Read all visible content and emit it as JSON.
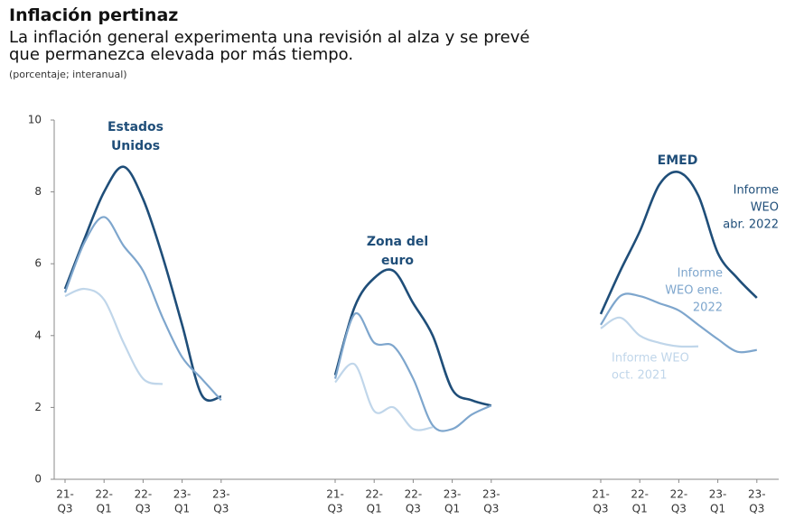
{
  "chart_data": {
    "type": "line",
    "title": "Inflación pertinaz",
    "subtitle": [
      "La inflación general experimenta una revisión al alza y se prevé",
      "que permanezca elevada por más tiempo."
    ],
    "note": "(porcentaje; interanual)",
    "ylim": [
      0,
      10
    ],
    "yticks": [
      0,
      2,
      4,
      6,
      8,
      10
    ],
    "categories": [
      [
        "21-",
        "Q3"
      ],
      null,
      [
        "22-",
        "Q1"
      ],
      null,
      [
        "22-",
        "Q3"
      ],
      null,
      [
        "23-",
        "Q1"
      ],
      null,
      [
        "23-",
        "Q3"
      ]
    ],
    "series": [
      {
        "name": [
          "Informe",
          "WEO",
          "abr. 2022"
        ],
        "color": "#1f4e79"
      },
      {
        "name": [
          "Informe",
          "WEO ene.",
          "2022"
        ],
        "color": "#7ea6cd"
      },
      {
        "name": [
          "Informe WEO",
          "oct. 2021"
        ],
        "color": "#c0d6ea"
      }
    ],
    "panels": [
      {
        "title": [
          "Estados",
          "Unidos"
        ],
        "values": [
          [
            5.3,
            6.7,
            8.0,
            8.7,
            7.8,
            6.2,
            4.3,
            2.35,
            2.3
          ],
          [
            5.2,
            6.6,
            7.3,
            6.5,
            5.8,
            4.5,
            3.4,
            2.8,
            2.2
          ],
          [
            5.1,
            5.3,
            5.0,
            3.8,
            2.8,
            2.65,
            null,
            null,
            null
          ]
        ]
      },
      {
        "title": [
          "Zona del",
          "euro"
        ],
        "values": [
          [
            2.9,
            4.8,
            5.6,
            5.8,
            4.9,
            4.0,
            2.5,
            2.2,
            2.05
          ],
          [
            2.8,
            4.6,
            3.8,
            3.7,
            2.8,
            1.5,
            1.4,
            1.8,
            2.05
          ],
          [
            2.7,
            3.2,
            1.9,
            2.0,
            1.4,
            1.45,
            null,
            null,
            null
          ]
        ]
      },
      {
        "title": [
          "EMED"
        ],
        "values": [
          [
            4.6,
            5.8,
            6.9,
            8.2,
            8.55,
            7.9,
            6.3,
            5.6,
            5.05
          ],
          [
            4.3,
            5.1,
            5.1,
            4.9,
            4.7,
            4.3,
            3.9,
            3.55,
            3.6
          ],
          [
            4.2,
            4.5,
            4.0,
            3.8,
            3.7,
            3.7,
            null,
            null,
            null
          ]
        ]
      }
    ]
  }
}
